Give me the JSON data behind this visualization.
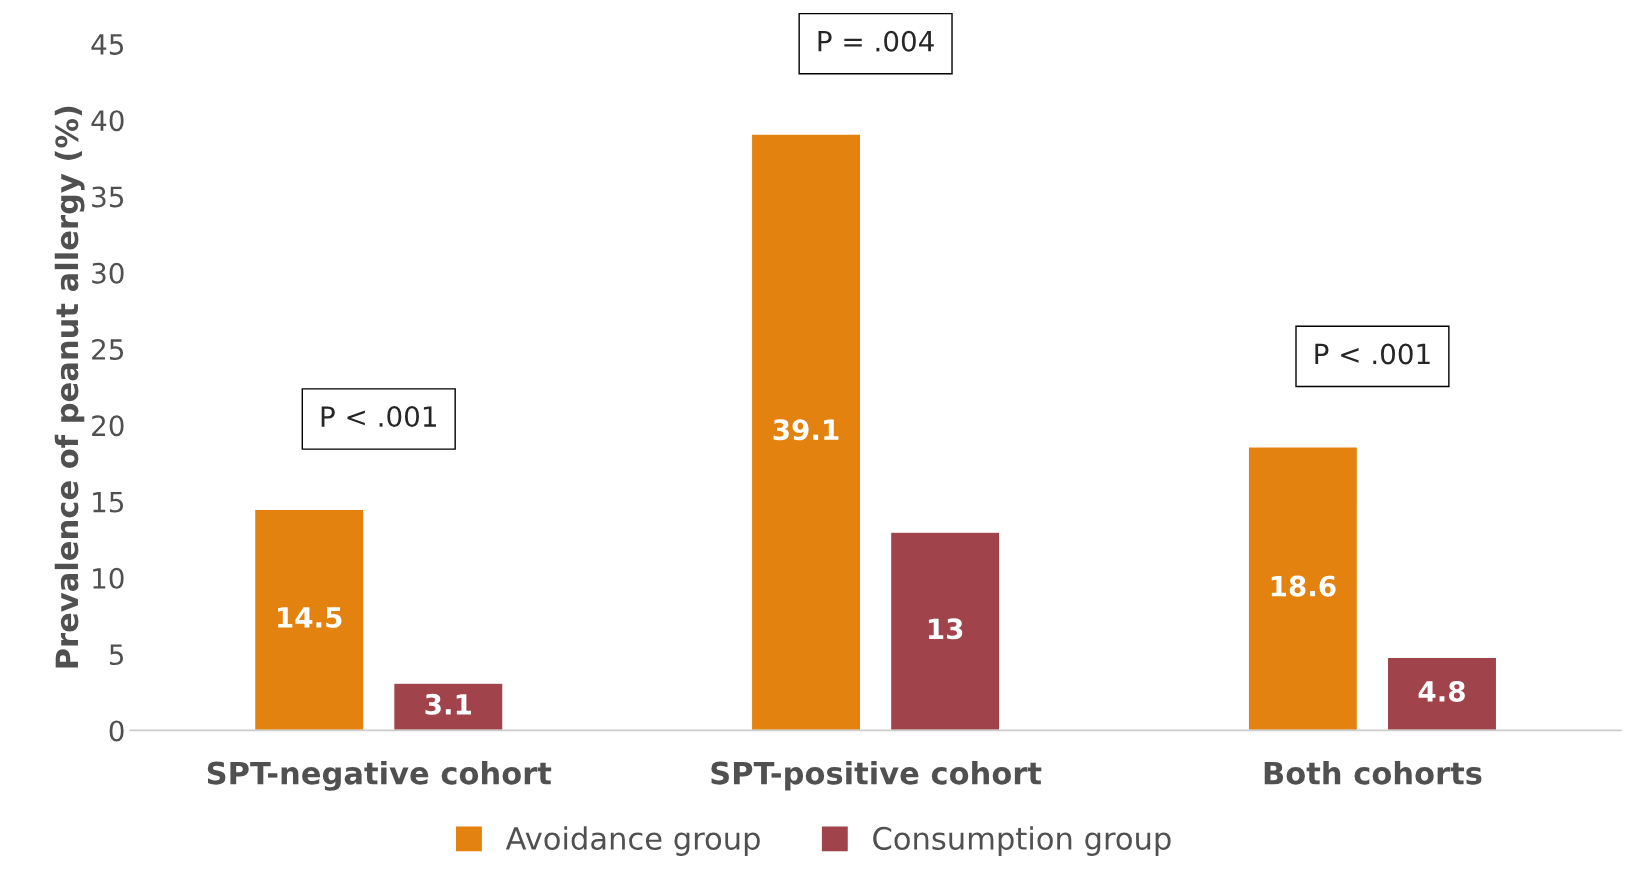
{
  "chart_data": {
    "type": "bar",
    "ylabel": "Prevalence of peanut allergy (%)",
    "categories": [
      "SPT-negative cohort",
      "SPT-positive cohort",
      "Both cohorts"
    ],
    "series": [
      {
        "name": "Avoidance group",
        "color": "#e4820f",
        "values": [
          14.5,
          39.1,
          18.6
        ]
      },
      {
        "name": "Consumption group",
        "color": "#a0434a",
        "values": [
          3.1,
          13,
          4.8
        ]
      }
    ],
    "ylim": [
      0,
      45
    ],
    "yticks": [
      0,
      5,
      10,
      15,
      20,
      25,
      30,
      35,
      40,
      45
    ],
    "grid": false,
    "legend": "bottom",
    "data_labels": true,
    "annotations": [
      "P < .001",
      "P = .004",
      "P < .001"
    ]
  }
}
